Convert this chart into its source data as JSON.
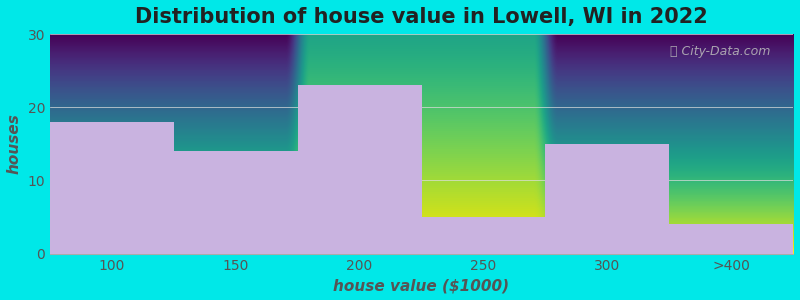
{
  "title": "Distribution of house value in Lowell, WI in 2022",
  "xlabel": "house value ($1000)",
  "ylabel": "houses",
  "categories": [
    "100",
    "150",
    "200",
    "250",
    "300",
    ">400"
  ],
  "values": [
    18,
    14,
    23,
    5,
    15,
    4
  ],
  "bar_color": "#c9b3e0",
  "ylim": [
    0,
    30
  ],
  "yticks": [
    0,
    10,
    20,
    30
  ],
  "bg_color_top": "#e0f2e0",
  "bg_color_bottom": "#ffffff",
  "outer_bg": "#00e8e8",
  "watermark": "City-Data.com",
  "title_fontsize": 15,
  "axis_label_fontsize": 11,
  "tick_fontsize": 10,
  "bar_positions": [
    0,
    1,
    2,
    3,
    4,
    5
  ],
  "bar_width": 1.0
}
